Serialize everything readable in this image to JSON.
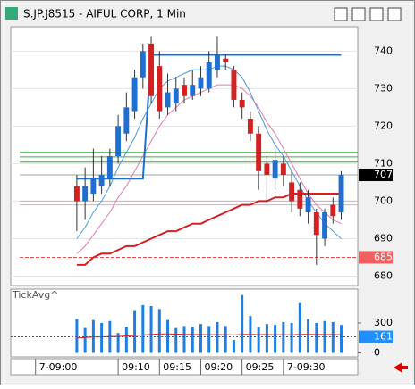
{
  "window_title": "S.JP.J8515 - AIFUL CORP, 1 Min",
  "chart_data": {
    "type": "candlestick",
    "x": [
      "09:05",
      "09:06",
      "09:07",
      "09:08",
      "09:09",
      "09:10",
      "09:11",
      "09:12",
      "09:13",
      "09:14",
      "09:15",
      "09:16",
      "09:17",
      "09:18",
      "09:19",
      "09:20",
      "09:21",
      "09:22",
      "09:23",
      "09:24",
      "09:25",
      "09:26",
      "09:27",
      "09:28",
      "09:29",
      "09:30",
      "09:31",
      "09:32",
      "09:33",
      "09:34",
      "09:35",
      "09:36",
      "09:37"
    ],
    "open": [
      704,
      700,
      702,
      704,
      706,
      712,
      718,
      724,
      733,
      742,
      736,
      725,
      726,
      731,
      728,
      730,
      730,
      735,
      738,
      735,
      727,
      722,
      718,
      710,
      706,
      710,
      705,
      703,
      697,
      697,
      690,
      699,
      697
    ],
    "high": [
      707,
      709,
      714,
      712,
      714,
      723,
      729,
      735,
      742,
      744,
      740,
      734,
      733,
      733,
      735,
      736,
      740,
      744,
      739,
      736,
      729,
      724,
      720,
      712,
      714,
      712,
      708,
      705,
      703,
      698,
      698,
      701,
      708
    ],
    "low": [
      692,
      695,
      700,
      702,
      704,
      710,
      716,
      722,
      730,
      726,
      722,
      723,
      724,
      726,
      727,
      728,
      729,
      733,
      735,
      725,
      722,
      716,
      703,
      700,
      703,
      704,
      697,
      696,
      694,
      683,
      688,
      694,
      695
    ],
    "close": [
      700,
      704,
      706,
      707,
      712,
      720,
      725,
      733,
      740,
      728,
      724,
      729,
      730,
      728,
      731,
      733,
      737,
      739,
      737,
      727,
      725,
      718,
      708,
      707,
      711,
      707,
      700,
      698,
      701,
      691,
      697,
      696,
      707
    ],
    "up_color": "#1f6fd0",
    "down_color": "#d42020",
    "lines": [
      {
        "color": "#4a9be0",
        "values": [
          690,
          693,
          697,
          700,
          704,
          709,
          713,
          717,
          722,
          726,
          730,
          732,
          733,
          734,
          735,
          735,
          735,
          736,
          736,
          735,
          733,
          729,
          724,
          719,
          715,
          712,
          708,
          704,
          700,
          697,
          694,
          692,
          690
        ]
      },
      {
        "color": "#e07ab0",
        "values": [
          686,
          688,
          691,
          694,
          697,
          701,
          704,
          708,
          712,
          716,
          720,
          723,
          725,
          727,
          728,
          729,
          730,
          731,
          731,
          731,
          730,
          728,
          725,
          721,
          718,
          714,
          710,
          706,
          702,
          699,
          697,
          695,
          694
        ]
      },
      {
        "color": "#d42020",
        "values": [
          683,
          683,
          685,
          686,
          686,
          687,
          688,
          688,
          689,
          690,
          691,
          692,
          692,
          693,
          694,
          694,
          695,
          696,
          697,
          698,
          699,
          699,
          700,
          700,
          701,
          701,
          702,
          702,
          702,
          702,
          702,
          702,
          702
        ]
      },
      {
        "color": "#1f6fd0",
        "values": [
          706,
          706,
          706,
          706,
          706,
          706,
          706,
          706,
          706,
          739,
          739,
          739,
          739,
          739,
          739,
          739,
          739,
          739,
          739,
          739,
          739,
          739,
          739,
          739,
          739,
          739,
          739,
          739,
          739,
          739,
          739,
          739,
          739
        ]
      }
    ],
    "levels": [
      {
        "value": 713,
        "color": "#30b030"
      },
      {
        "value": 711.8,
        "color": "#30b030"
      },
      {
        "value": 710.4,
        "color": "#30b030"
      },
      {
        "value": 707,
        "color": "#a0a0a0"
      },
      {
        "value": 700,
        "color": "#f0a0b8"
      },
      {
        "value": 699,
        "color": "#f0a0b8"
      },
      {
        "value": 685,
        "color": "#e05050"
      }
    ],
    "xlim": [
      "08:57",
      "09:39"
    ],
    "xticks": [
      {
        "value": "09:00",
        "label": "7-09:00"
      },
      "09:10",
      "09:15",
      "09:20",
      "09:25",
      {
        "value": "09:30",
        "label": "7-09:30"
      }
    ],
    "ylim": [
      677.5,
      746.5
    ],
    "yticks": [
      680,
      690,
      700,
      710,
      720,
      730,
      740
    ],
    "price_markers": [
      {
        "value": 707,
        "color": "#000000"
      },
      {
        "value": 685,
        "color": "#f06060"
      }
    ],
    "volume": {
      "title": "TickAvg^",
      "color": "#1f7fe0",
      "values": [
        340,
        250,
        330,
        300,
        320,
        200,
        260,
        420,
        480,
        470,
        440,
        330,
        250,
        270,
        260,
        290,
        270,
        310,
        270,
        130,
        580,
        370,
        260,
        290,
        280,
        310,
        300,
        500,
        340,
        300,
        320,
        310,
        280
      ],
      "avg": {
        "color": "#d42020",
        "values": [
          150,
          155,
          160,
          160,
          165,
          165,
          170,
          175,
          180,
          185,
          190,
          190,
          188,
          186,
          185,
          184,
          183,
          184,
          183,
          180,
          185,
          186,
          184,
          184,
          183,
          183,
          182,
          186,
          186,
          185,
          185,
          184,
          183
        ]
      },
      "ylim": [
        -40,
        640
      ],
      "yticks": [
        0,
        300
      ],
      "markers": [
        {
          "value": 161,
          "color": "#1e90ff"
        }
      ]
    }
  }
}
